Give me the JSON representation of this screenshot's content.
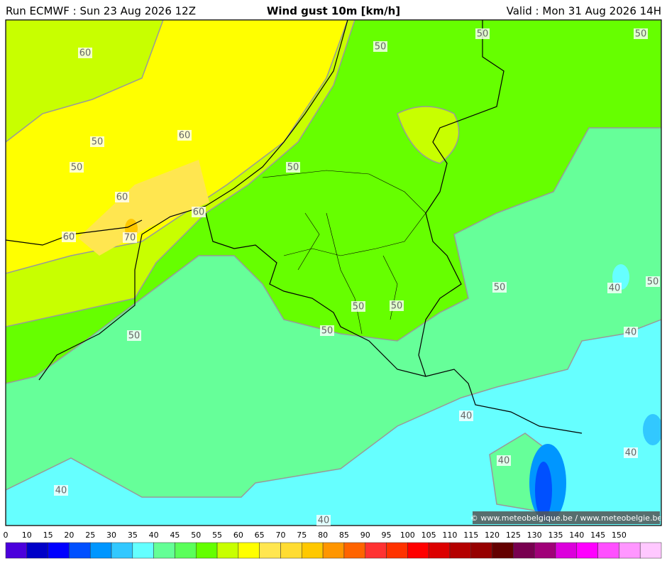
{
  "header": {
    "run": "Run ECMWF : Sun 23 Aug 2026 12Z",
    "title": "Wind gust 10m [km/h]",
    "valid": "Valid : Mon 31 Aug 2026 14H"
  },
  "map": {
    "contour_labels": [
      60,
      50,
      50,
      50,
      60,
      50,
      50,
      50,
      60,
      60,
      60,
      70,
      50,
      40,
      50,
      50,
      50,
      50,
      40,
      50,
      40,
      40,
      40,
      40,
      40
    ],
    "credit": "© www.meteobelgique.be / www.meteobelgie.be"
  },
  "colorbar": {
    "labels": [
      0,
      10,
      15,
      20,
      25,
      30,
      35,
      40,
      45,
      50,
      55,
      60,
      65,
      70,
      75,
      80,
      85,
      90,
      95,
      100,
      105,
      110,
      115,
      120,
      125,
      130,
      135,
      140,
      145,
      150
    ],
    "colors": [
      "#4b00dc",
      "#0000c8",
      "#0000ff",
      "#0050ff",
      "#0096ff",
      "#32c8ff",
      "#64ffff",
      "#64ff96",
      "#5aff5a",
      "#64ff00",
      "#c8ff00",
      "#ffff00",
      "#ffe650",
      "#ffdc32",
      "#ffc800",
      "#ff9600",
      "#ff6400",
      "#ff3232",
      "#ff3200",
      "#ff0000",
      "#dc0000",
      "#b40000",
      "#960000",
      "#640000",
      "#780050",
      "#a00078",
      "#dc00dc",
      "#ff00ff",
      "#ff50ff",
      "#ff96ff",
      "#ffc8ff"
    ]
  }
}
